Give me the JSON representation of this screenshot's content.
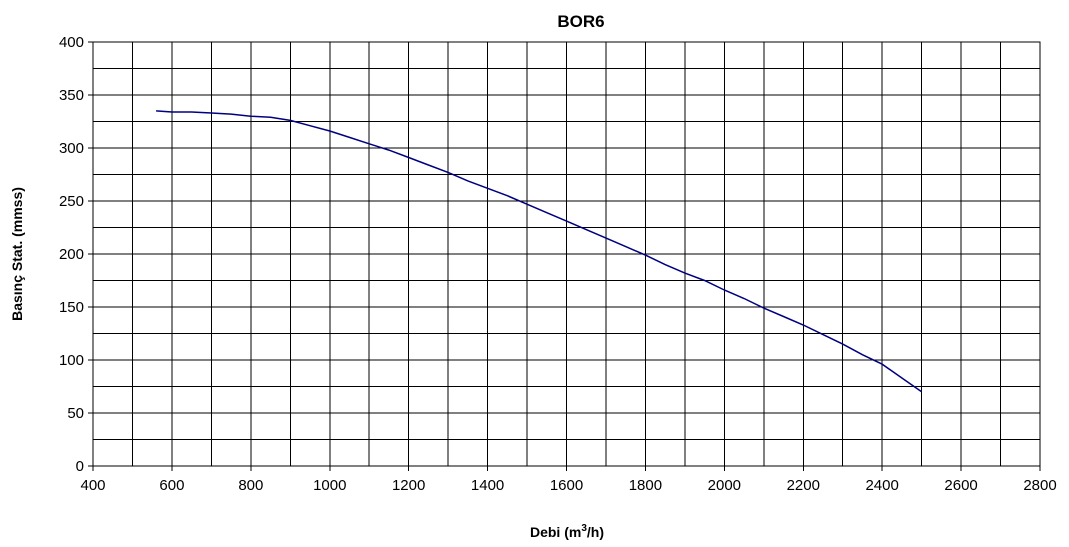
{
  "chart_data": {
    "type": "line",
    "title": "BOR6",
    "xlabel": "Debi (m",
    "xlabel_sup": "3",
    "xlabel_suffix": "/h)",
    "ylabel": "Basınç Stat. (mmss)",
    "xlim": [
      400,
      2800
    ],
    "ylim": [
      0,
      400
    ],
    "xticks": [
      400,
      600,
      800,
      1000,
      1200,
      1400,
      1600,
      1800,
      2000,
      2200,
      2400,
      2600,
      2800
    ],
    "yticks": [
      0,
      50,
      100,
      150,
      200,
      250,
      300,
      350,
      400
    ],
    "x_grid_step": 100,
    "y_grid_step": 25,
    "grid": true,
    "series": [
      {
        "color": "#000080",
        "x": [
          560,
          600,
          650,
          700,
          750,
          800,
          850,
          900,
          950,
          1000,
          1050,
          1100,
          1150,
          1200,
          1250,
          1300,
          1350,
          1400,
          1450,
          1500,
          1550,
          1600,
          1650,
          1700,
          1750,
          1800,
          1850,
          1900,
          1950,
          2000,
          2050,
          2100,
          2150,
          2200,
          2250,
          2300,
          2350,
          2400,
          2450,
          2500
        ],
        "y": [
          335,
          334,
          334,
          333,
          332,
          330,
          329,
          326,
          321,
          316,
          310,
          304,
          298,
          291,
          284,
          277,
          269,
          262,
          255,
          247,
          239,
          231,
          223,
          215,
          207,
          199,
          190,
          182,
          175,
          166,
          158,
          149,
          141,
          133,
          124,
          115,
          105,
          96,
          83,
          70
        ]
      }
    ]
  }
}
